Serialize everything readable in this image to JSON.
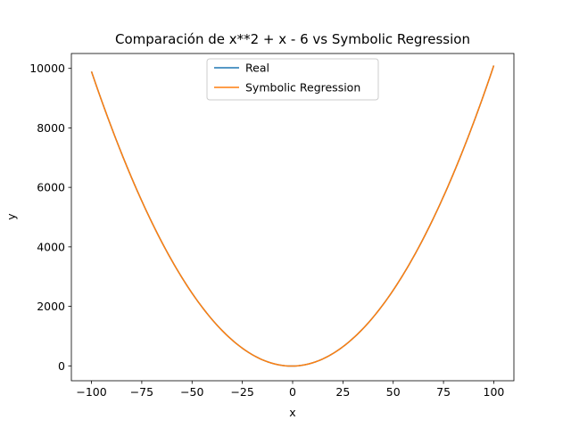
{
  "chart_data": {
    "type": "line",
    "title": "Comparación de x**2 + x - 6 vs Symbolic Regression",
    "xlabel": "x",
    "ylabel": "y",
    "xlim": [
      -110,
      110
    ],
    "ylim": [
      -500,
      10500
    ],
    "x_ticks": [
      -100,
      -75,
      -50,
      -25,
      0,
      25,
      50,
      75,
      100
    ],
    "x_tick_labels": [
      "−100",
      "−75",
      "−50",
      "−25",
      "0",
      "25",
      "50",
      "75",
      "100"
    ],
    "y_ticks": [
      0,
      2000,
      4000,
      6000,
      8000,
      10000
    ],
    "y_tick_labels": [
      "0",
      "2000",
      "4000",
      "6000",
      "8000",
      "10000"
    ],
    "grid": false,
    "legend_position": "upper center",
    "x": [
      -100,
      -90,
      -80,
      -70,
      -60,
      -50,
      -40,
      -30,
      -20,
      -10,
      0,
      10,
      20,
      30,
      40,
      50,
      60,
      70,
      80,
      90,
      100
    ],
    "series": [
      {
        "name": "Real",
        "color": "#1f77b4",
        "values": [
          9894,
          8004,
          6314,
          4824,
          3534,
          2444,
          1554,
          864,
          374,
          84,
          -6,
          104,
          414,
          924,
          1634,
          2544,
          3654,
          4964,
          6474,
          8184,
          10094
        ]
      },
      {
        "name": "Symbolic Regression",
        "color": "#ff7f0e",
        "values": [
          9894,
          8004,
          6314,
          4824,
          3534,
          2444,
          1554,
          864,
          374,
          84,
          -6,
          104,
          414,
          924,
          1634,
          2544,
          3654,
          4964,
          6474,
          8184,
          10094
        ]
      }
    ]
  }
}
